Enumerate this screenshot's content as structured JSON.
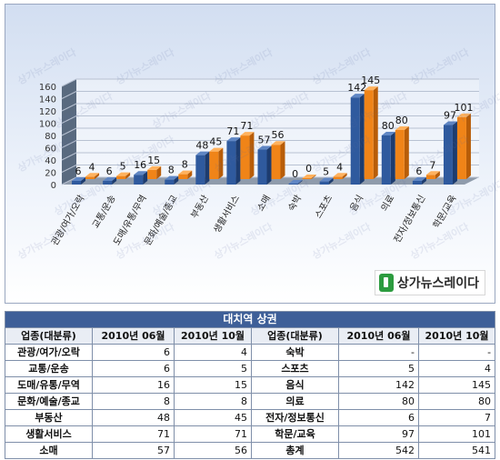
{
  "chart_data": {
    "type": "bar",
    "categories": [
      "관광/여가/오락",
      "교통/운송",
      "도매/유통/무역",
      "문화/예술/종교",
      "부동산",
      "생활서비스",
      "소매",
      "숙박",
      "스포츠",
      "음식",
      "의료",
      "전자/정보통신",
      "학문/교육"
    ],
    "series": [
      {
        "name": "2010년 06월",
        "values": [
          6,
          6,
          16,
          8,
          48,
          71,
          57,
          0,
          5,
          142,
          80,
          6,
          97
        ],
        "color": "#2f5a9e"
      },
      {
        "name": "2010년 10월",
        "values": [
          4,
          5,
          15,
          8,
          45,
          71,
          56,
          0,
          4,
          145,
          80,
          7,
          101
        ],
        "color": "#f08418"
      }
    ],
    "data_labels": [
      [
        "6",
        "4"
      ],
      [
        "6",
        "5"
      ],
      [
        "16",
        "15"
      ],
      [
        "8",
        "8"
      ],
      [
        "48",
        "45"
      ],
      [
        "71",
        "71"
      ],
      [
        "57",
        "56"
      ],
      [
        "0",
        "0"
      ],
      [
        "5",
        "4"
      ],
      [
        "142",
        "145"
      ],
      [
        "80",
        "80"
      ],
      [
        "6",
        "7"
      ],
      [
        "97",
        "101"
      ]
    ],
    "yticks": [
      "0",
      "20",
      "40",
      "60",
      "80",
      "100",
      "120",
      "140",
      "160"
    ],
    "ylim": [
      0,
      160
    ],
    "grid": true,
    "title": "",
    "xlabel": "",
    "ylabel": ""
  },
  "logo_text": "상가뉴스레이다",
  "watermark_text": "상가뉴스레이다",
  "table": {
    "title": "대치역 상권",
    "headers": [
      "업종(대분류)",
      "2010년 06월",
      "2010년 10월",
      "업종(대분류)",
      "2010년 06월",
      "2010년 10월"
    ],
    "rows": [
      [
        "관광/여가/오락",
        "6",
        "4",
        "숙박",
        "-",
        "-"
      ],
      [
        "교통/운송",
        "6",
        "5",
        "스포츠",
        "5",
        "4"
      ],
      [
        "도매/유통/무역",
        "16",
        "15",
        "음식",
        "142",
        "145"
      ],
      [
        "문화/예술/종교",
        "8",
        "8",
        "의료",
        "80",
        "80"
      ],
      [
        "부동산",
        "48",
        "45",
        "전자/정보통신",
        "6",
        "7"
      ],
      [
        "생활서비스",
        "71",
        "71",
        "학문/교육",
        "97",
        "101"
      ],
      [
        "소매",
        "57",
        "56",
        "총계",
        "542",
        "541"
      ]
    ]
  }
}
